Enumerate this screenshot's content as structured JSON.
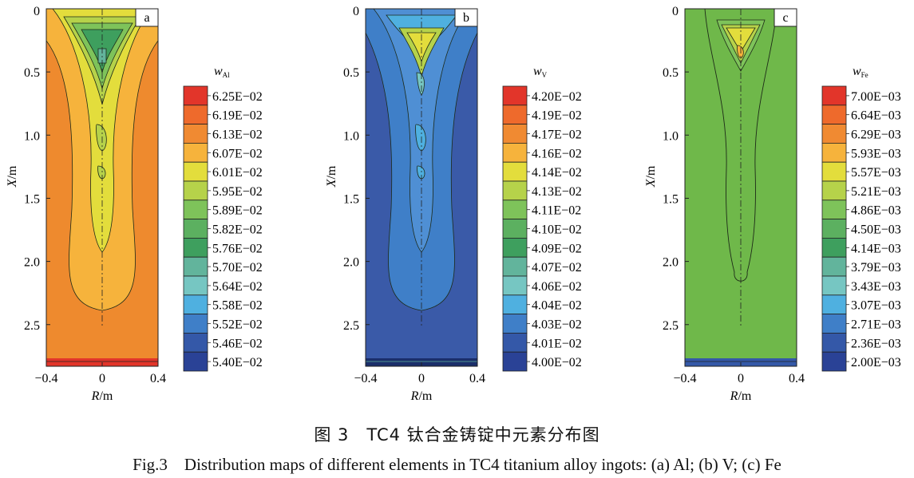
{
  "figure": {
    "caption_zh": "图 3　TC4 钛合金铸锭中元素分布图",
    "caption_en": "Fig.3　Distribution maps of different elements in TC4 titanium alloy ingots: (a) Al; (b) V; (c) Fe"
  },
  "chart_data": [
    {
      "type": "heatmap",
      "panel_label": "a",
      "element_symbol": "w",
      "element_subscript": "Al",
      "xlabel": "R/m",
      "ylabel": "X/m",
      "x_ticks": [
        "−0.4",
        "0",
        "0.4"
      ],
      "y_ticks": [
        "0",
        "0.5",
        "1.0",
        "1.5",
        "2.0",
        "2.5"
      ],
      "xlim": [
        -0.4,
        0.4
      ],
      "ylim": [
        0,
        2.83
      ],
      "legend_levels": [
        "6.25E−02",
        "6.19E−02",
        "6.13E−02",
        "6.07E−02",
        "6.01E−02",
        "5.95E−02",
        "5.89E−02",
        "5.82E−02",
        "5.76E−02",
        "5.70E−02",
        "5.64E−02",
        "5.58E−02",
        "5.52E−02",
        "5.46E−02",
        "5.40E−02"
      ],
      "background": "#ee8a2e"
    },
    {
      "type": "heatmap",
      "panel_label": "b",
      "element_symbol": "w",
      "element_subscript": "V",
      "xlabel": "R/m",
      "ylabel": "X/m",
      "x_ticks": [
        "−0.4",
        "0",
        "0.4"
      ],
      "y_ticks": [
        "0",
        "0.5",
        "1.0",
        "1.5",
        "2.0",
        "2.5"
      ],
      "xlim": [
        -0.4,
        0.4
      ],
      "ylim": [
        0,
        2.83
      ],
      "legend_levels": [
        "4.20E−02",
        "4.19E−02",
        "4.17E−02",
        "4.16E−02",
        "4.14E−02",
        "4.13E−02",
        "4.11E−02",
        "4.10E−02",
        "4.09E−02",
        "4.07E−02",
        "4.06E−02",
        "4.04E−02",
        "4.03E−02",
        "4.01E−02",
        "4.00E−02"
      ],
      "background": "#3a5aa8"
    },
    {
      "type": "heatmap",
      "panel_label": "c",
      "element_symbol": "w",
      "element_subscript": "Fe",
      "xlabel": "R/m",
      "ylabel": "X/m",
      "x_ticks": [
        "−0.4",
        "0",
        "0.4"
      ],
      "y_ticks": [
        "0",
        "0.5",
        "1.0",
        "1.5",
        "2.0",
        "2.5"
      ],
      "xlim": [
        -0.4,
        0.4
      ],
      "ylim": [
        0,
        2.83
      ],
      "legend_levels": [
        "7.00E−03",
        "6.64E−03",
        "6.29E−03",
        "5.93E−03",
        "5.57E−03",
        "5.21E−03",
        "4.86E−03",
        "4.50E−03",
        "4.14E−03",
        "3.79E−03",
        "3.43E−03",
        "3.07E−03",
        "2.71E−03",
        "2.36E−03",
        "2.00E−03"
      ],
      "background": "#6fb84a"
    }
  ],
  "palette": [
    "#e2352a",
    "#ee6a2c",
    "#f08a32",
    "#f6b33c",
    "#e3dd3c",
    "#b6d24a",
    "#7ec35a",
    "#5cb060",
    "#3e9f5e",
    "#62b49c",
    "#76c6c2",
    "#4fb0e0",
    "#3f7fc8",
    "#3458a8",
    "#2a4296"
  ]
}
